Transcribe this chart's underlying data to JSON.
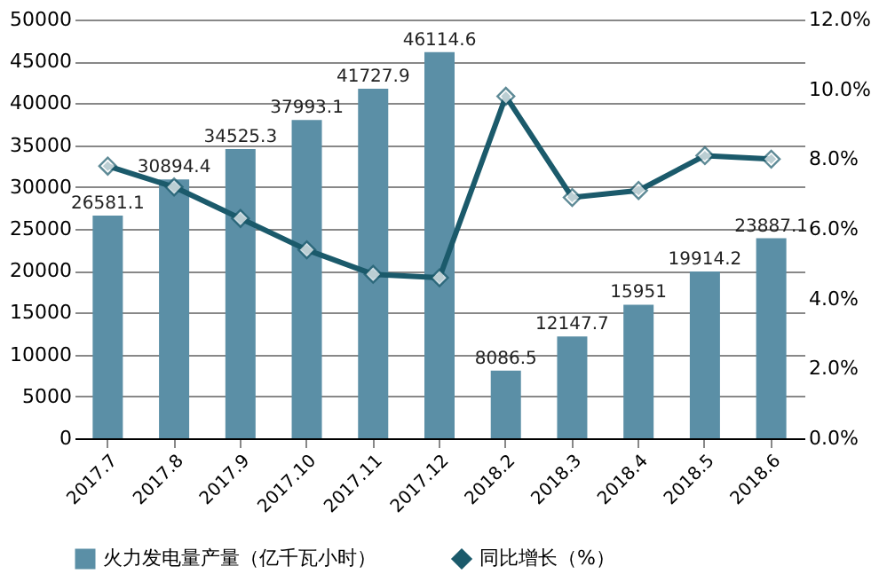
{
  "chart_data": {
    "type": "bar",
    "categories": [
      "2017.7",
      "2017.8",
      "2017.9",
      "2017.10",
      "2017.11",
      "2017.12",
      "2018.2",
      "2018.3",
      "2018.4",
      "2018.5",
      "2018.6"
    ],
    "series": [
      {
        "name": "火力发电量产量（亿千瓦小时）",
        "color": "#5b8fa6",
        "values": [
          26581.1,
          30894.4,
          34525.3,
          37993.1,
          41727.9,
          46114.6,
          8086.5,
          12147.7,
          15951,
          19914.2,
          23887.1
        ],
        "value_labels": [
          "26581.1",
          "30894.4",
          "34525.3",
          "37993.1",
          "41727.9",
          "46114.6",
          "8086.5",
          "12147.7",
          "15951",
          "19914.2",
          "23887.1"
        ]
      },
      {
        "name": "同比增长（%）",
        "type": "line",
        "axis": "y2",
        "color": "#1b5a6b",
        "marker": "diamond",
        "line_style": "solid",
        "values": [
          7.8,
          7.2,
          6.3,
          5.4,
          4.7,
          4.6,
          9.8,
          6.9,
          7.1,
          8.1,
          8.0
        ]
      }
    ],
    "ylim": [
      0,
      50000
    ],
    "yticks": [
      0,
      5000,
      10000,
      15000,
      20000,
      25000,
      30000,
      35000,
      40000,
      45000,
      50000
    ],
    "y2lim": [
      0,
      12
    ],
    "y2ticks": [
      {
        "value": 0,
        "label": "0.0%"
      },
      {
        "value": 2,
        "label": "2.0%"
      },
      {
        "value": 4,
        "label": "4.0%"
      },
      {
        "value": 6,
        "label": "6.0%"
      },
      {
        "value": 8,
        "label": "8.0%"
      },
      {
        "value": 10,
        "label": "10.0%"
      },
      {
        "value": 12,
        "label": "12.0%"
      }
    ],
    "grid": "y",
    "legend": "bottom"
  }
}
